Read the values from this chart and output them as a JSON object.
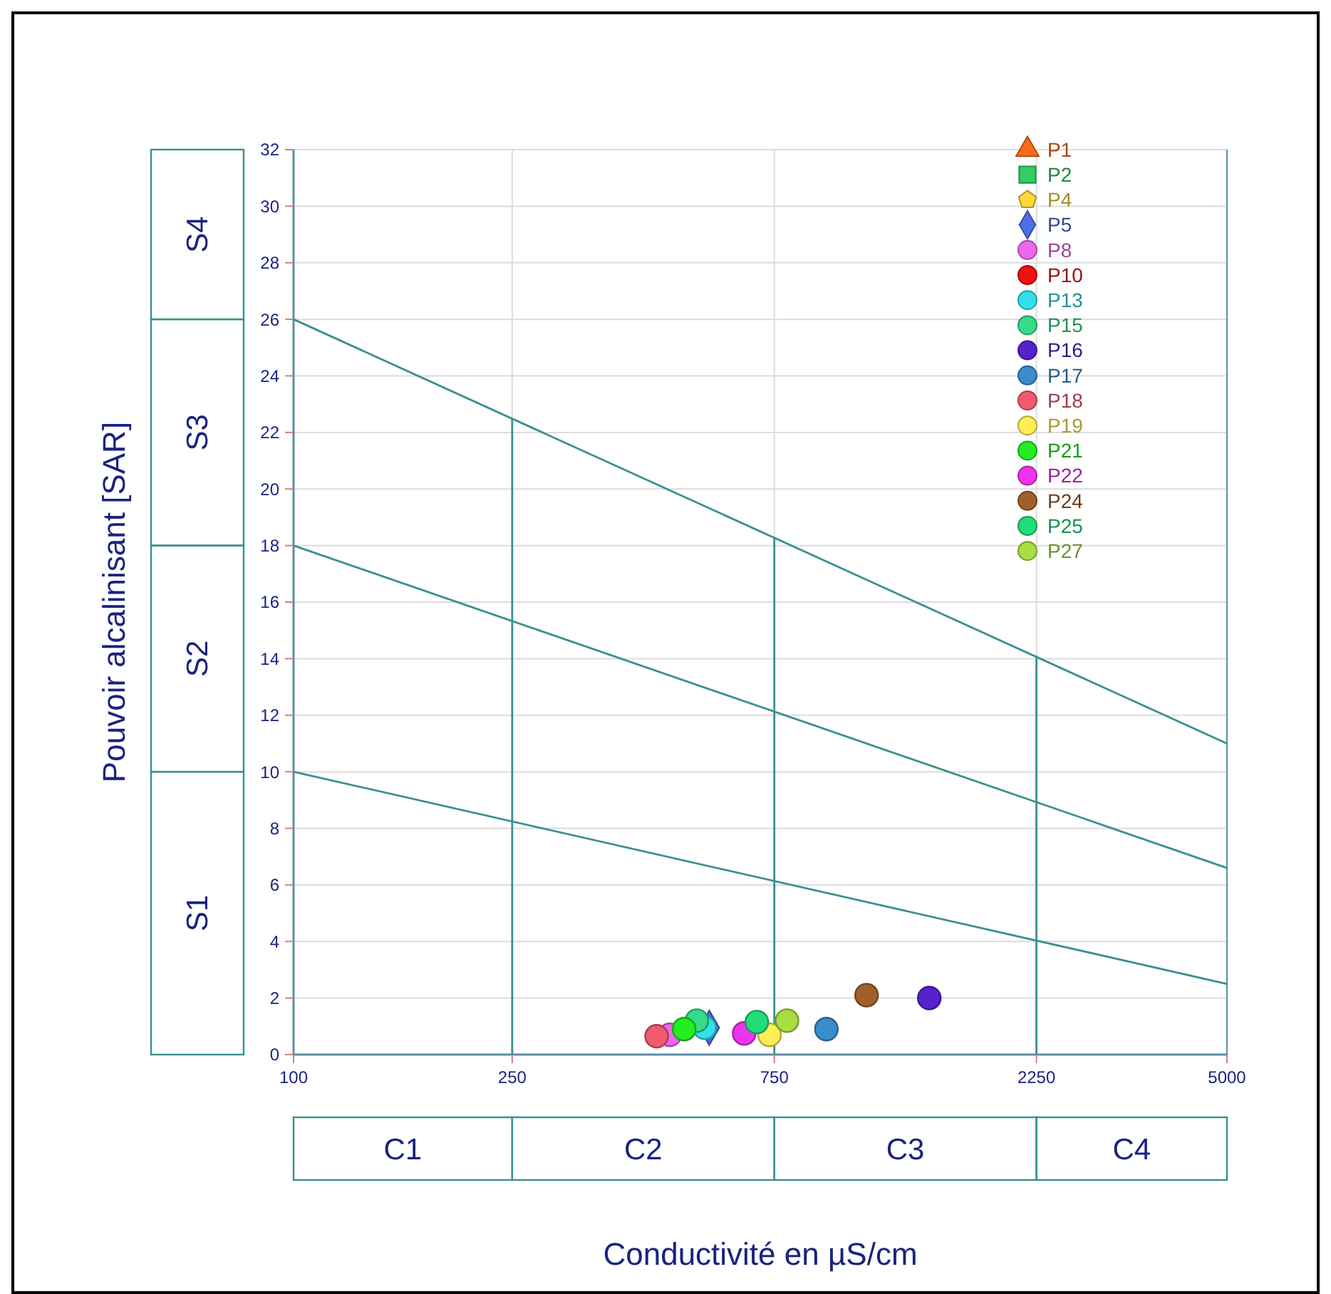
{
  "chart_data": {
    "type": "scatter",
    "xlabel": "Conductivité en µS/cm",
    "ylabel": "Pouvoir alcalinisant [SAR]",
    "log": "x",
    "xlim": [
      100,
      5000
    ],
    "xticks": [
      100,
      250,
      750,
      2250,
      5000
    ],
    "ylim": [
      0,
      32
    ],
    "yticks": [
      0,
      2,
      4,
      6,
      8,
      10,
      12,
      14,
      16,
      18,
      20,
      22,
      24,
      26,
      28,
      30,
      32
    ],
    "grid": true,
    "legend": "top right",
    "annotations": [
      "C1",
      "C2",
      "C3",
      "C4",
      "S1",
      "S2",
      "S3",
      "S4"
    ],
    "series": [
      {
        "type": "line",
        "color": "#3a9090",
        "x": [
          100,
          5000
        ],
        "values": [
          26,
          11
        ],
        "marker": "none"
      },
      {
        "type": "line",
        "color": "#3a9090",
        "x": [
          100,
          5000
        ],
        "values": [
          18,
          6.6
        ],
        "marker": "none"
      },
      {
        "type": "line",
        "color": "#3a9090",
        "x": [
          100,
          5000
        ],
        "values": [
          10,
          2.5
        ],
        "marker": "none"
      },
      {
        "type": "line",
        "color": "#3a9090",
        "x": [
          250,
          250
        ],
        "values": [
          0,
          22.5
        ],
        "marker": "none"
      },
      {
        "type": "line",
        "color": "#3a9090",
        "x": [
          750,
          750
        ],
        "values": [
          0,
          18.3
        ],
        "marker": "none"
      },
      {
        "type": "line",
        "color": "#3a9090",
        "x": [
          2250,
          2250
        ],
        "values": [
          0,
          14.1
        ],
        "marker": "none"
      },
      {
        "name": "P1",
        "color": "#ff6a1a",
        "marker": "triangle",
        "x": [
          null
        ],
        "values": [
          null
        ]
      },
      {
        "name": "P2",
        "color": "#33cc66",
        "marker": "square",
        "x": [
          null
        ],
        "values": [
          null
        ]
      },
      {
        "name": "P4",
        "color": "#ffd83a",
        "marker": "pentagon",
        "x": [
          null
        ],
        "values": [
          null
        ]
      },
      {
        "name": "P5",
        "color": "#4f6fe8",
        "marker": "diamond",
        "x": [
          571
        ],
        "values": [
          0.95
        ]
      },
      {
        "name": "P8",
        "color": "#ee66ee",
        "marker": "circle",
        "x": [
          484
        ],
        "values": [
          0.7
        ]
      },
      {
        "name": "P10",
        "color": "#ee1111",
        "marker": "circle",
        "x": [
          null
        ],
        "values": [
          null
        ]
      },
      {
        "name": "P13",
        "color": "#33e0ee",
        "marker": "circle",
        "x": [
          560
        ],
        "values": [
          0.95
        ]
      },
      {
        "name": "P15",
        "color": "#33dd88",
        "marker": "circle",
        "x": [
          542
        ],
        "values": [
          1.2
        ]
      },
      {
        "name": "P16",
        "color": "#5522cc",
        "marker": "circle",
        "x": [
          1436
        ],
        "values": [
          2.0
        ]
      },
      {
        "name": "P17",
        "color": "#3a8ccc",
        "marker": "circle",
        "x": [
          933
        ],
        "values": [
          0.9
        ]
      },
      {
        "name": "P18",
        "color": "#f05a6e",
        "marker": "circle",
        "x": [
          458
        ],
        "values": [
          0.65
        ]
      },
      {
        "name": "P19",
        "color": "#ffee55",
        "marker": "circle",
        "x": [
          735
        ],
        "values": [
          0.7
        ]
      },
      {
        "name": "P21",
        "color": "#22ee22",
        "marker": "circle",
        "x": [
          514
        ],
        "values": [
          0.9
        ]
      },
      {
        "name": "P22",
        "color": "#ee33ee",
        "marker": "circle",
        "x": [
          661
        ],
        "values": [
          0.75
        ]
      },
      {
        "name": "P24",
        "color": "#a0602a",
        "marker": "circle",
        "x": [
          1104
        ],
        "values": [
          2.1
        ]
      },
      {
        "name": "P25",
        "color": "#22dd77",
        "marker": "circle",
        "x": [
          697
        ],
        "values": [
          1.15
        ]
      },
      {
        "name": "P27",
        "color": "#a8dd44",
        "marker": "circle",
        "x": [
          791
        ],
        "values": [
          1.2
        ]
      }
    ]
  }
}
